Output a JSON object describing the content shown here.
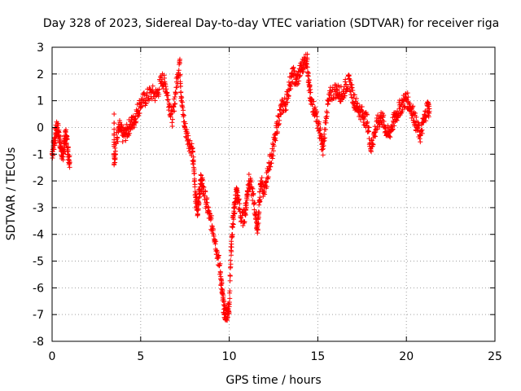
{
  "chart_data": {
    "type": "scatter",
    "title": "Day 328 of 2023, Sidereal Day-to-day VTEC variation (SDTVAR) for receiver riga",
    "xlabel": "GPS time / hours",
    "ylabel": "SDTVAR / TECUs",
    "xlim": [
      0,
      25
    ],
    "ylim": [
      -8,
      3
    ],
    "xticks": [
      "0",
      "5",
      "10",
      "15",
      "20",
      "25"
    ],
    "yticks": [
      "-8",
      "-7",
      "-6",
      "-5",
      "-4",
      "-3",
      "-2",
      "-1",
      "0",
      "1",
      "2",
      "3"
    ],
    "grid": true,
    "marker": "+",
    "color": "#ff0000",
    "series": [
      {
        "name": "SDTVAR",
        "points": [
          [
            0.0,
            -1.0
          ],
          [
            0.1,
            -0.6
          ],
          [
            0.2,
            -0.2
          ],
          [
            0.3,
            0.0
          ],
          [
            0.4,
            -0.3
          ],
          [
            0.5,
            -0.8
          ],
          [
            0.6,
            -1.1
          ],
          [
            0.7,
            -0.5
          ],
          [
            0.8,
            -0.3
          ],
          [
            0.9,
            -0.9
          ],
          [
            1.0,
            -1.3
          ],
          [
            3.5,
            0.5
          ],
          [
            3.5,
            -1.4
          ],
          [
            3.6,
            -0.6
          ],
          [
            3.8,
            0.0
          ],
          [
            4.0,
            -0.3
          ],
          [
            4.2,
            -0.2
          ],
          [
            4.4,
            0.1
          ],
          [
            4.6,
            0.2
          ],
          [
            4.8,
            0.6
          ],
          [
            5.0,
            0.9
          ],
          [
            5.3,
            1.1
          ],
          [
            5.6,
            1.3
          ],
          [
            5.9,
            1.2
          ],
          [
            6.2,
            1.8
          ],
          [
            6.4,
            1.6
          ],
          [
            6.6,
            0.9
          ],
          [
            6.8,
            0.3
          ],
          [
            7.0,
            1.5
          ],
          [
            7.2,
            2.5
          ],
          [
            7.3,
            1.0
          ],
          [
            7.5,
            0.0
          ],
          [
            7.7,
            -0.5
          ],
          [
            7.9,
            -0.8
          ],
          [
            8.0,
            -1.5
          ],
          [
            8.1,
            -2.6
          ],
          [
            8.2,
            -3.1
          ],
          [
            8.3,
            -2.5
          ],
          [
            8.4,
            -2.0
          ],
          [
            8.5,
            -2.2
          ],
          [
            8.7,
            -2.8
          ],
          [
            8.9,
            -3.4
          ],
          [
            9.1,
            -3.8
          ],
          [
            9.3,
            -4.6
          ],
          [
            9.5,
            -5.4
          ],
          [
            9.6,
            -6.2
          ],
          [
            9.7,
            -6.8
          ],
          [
            9.8,
            -7.0
          ],
          [
            9.9,
            -6.9
          ],
          [
            10.0,
            -6.7
          ],
          [
            10.1,
            -4.6
          ],
          [
            10.2,
            -3.6
          ],
          [
            10.3,
            -3.0
          ],
          [
            10.4,
            -2.4
          ],
          [
            10.5,
            -2.7
          ],
          [
            10.7,
            -3.5
          ],
          [
            10.9,
            -3.2
          ],
          [
            11.0,
            -2.6
          ],
          [
            11.1,
            -2.0
          ],
          [
            11.3,
            -2.4
          ],
          [
            11.5,
            -3.3
          ],
          [
            11.6,
            -3.8
          ],
          [
            11.7,
            -2.8
          ],
          [
            11.8,
            -2.0
          ],
          [
            12.0,
            -2.5
          ],
          [
            12.2,
            -1.6
          ],
          [
            12.4,
            -1.0
          ],
          [
            12.6,
            -0.4
          ],
          [
            12.8,
            0.4
          ],
          [
            13.0,
            0.8
          ],
          [
            13.2,
            0.9
          ],
          [
            13.4,
            1.6
          ],
          [
            13.6,
            2.0
          ],
          [
            13.8,
            1.7
          ],
          [
            14.0,
            2.1
          ],
          [
            14.2,
            2.4
          ],
          [
            14.4,
            2.6
          ],
          [
            14.5,
            1.6
          ],
          [
            14.6,
            1.0
          ],
          [
            14.8,
            0.7
          ],
          [
            15.0,
            0.2
          ],
          [
            15.2,
            -0.5
          ],
          [
            15.3,
            -0.8
          ],
          [
            15.5,
            0.6
          ],
          [
            15.7,
            1.2
          ],
          [
            16.0,
            1.4
          ],
          [
            16.2,
            1.3
          ],
          [
            16.4,
            1.2
          ],
          [
            16.6,
            1.6
          ],
          [
            16.8,
            1.7
          ],
          [
            17.0,
            1.1
          ],
          [
            17.2,
            0.8
          ],
          [
            17.4,
            0.6
          ],
          [
            17.6,
            0.4
          ],
          [
            17.8,
            0.2
          ],
          [
            18.0,
            -0.8
          ],
          [
            18.2,
            -0.2
          ],
          [
            18.4,
            0.2
          ],
          [
            18.6,
            0.4
          ],
          [
            18.8,
            0.0
          ],
          [
            19.0,
            -0.3
          ],
          [
            19.2,
            0.1
          ],
          [
            19.4,
            0.4
          ],
          [
            19.6,
            0.7
          ],
          [
            19.8,
            0.9
          ],
          [
            20.0,
            1.1
          ],
          [
            20.2,
            0.8
          ],
          [
            20.4,
            0.5
          ],
          [
            20.6,
            0.0
          ],
          [
            20.8,
            -0.3
          ],
          [
            21.0,
            0.3
          ],
          [
            21.2,
            0.8
          ],
          [
            21.3,
            0.6
          ]
        ]
      }
    ]
  }
}
